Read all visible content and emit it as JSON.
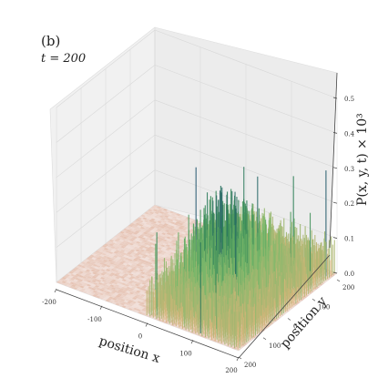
{
  "chart_data": {
    "type": "surface",
    "panel_label": "(b)",
    "time_label": "t = 200",
    "xlabel": "position x",
    "ylabel": "position y",
    "zlabel": "P(x, y, t) × 10³",
    "xlim": [
      -200,
      200
    ],
    "ylim": [
      -200,
      200
    ],
    "zlim": [
      0,
      0.5
    ],
    "x_ticks": [
      -200,
      -100,
      0,
      100,
      200
    ],
    "y_ticks": [
      200,
      100,
      0,
      -100,
      -200
    ],
    "y_tick_labels": [
      "200",
      "100",
      "0",
      "100",
      "200"
    ],
    "z_ticks": [
      0.0,
      0.1,
      0.2,
      0.3,
      0.4,
      0.5
    ],
    "z_tick_labels": [
      "0.0",
      "0.1",
      "0.2",
      "0.3",
      "0.4",
      "0.5"
    ],
    "grid": true,
    "colormap": [
      "#f6ecea",
      "#e6c3b3",
      "#d7b578",
      "#78b96a",
      "#2f8456",
      "#1c3f7a",
      "#141c55"
    ],
    "background_level": 0.005,
    "plume": {
      "x_range": [
        0,
        200
      ],
      "y_range": [
        -200,
        200
      ],
      "typical_height": 0.08,
      "peak_region": {
        "x": 60,
        "y": 0
      },
      "max_value": 0.48
    }
  }
}
